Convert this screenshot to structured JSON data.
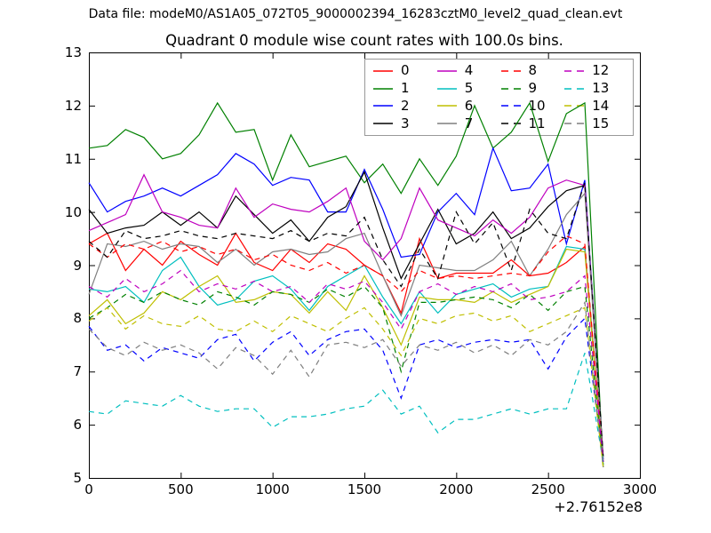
{
  "figure": {
    "suptitle": "Data file: modeM0/AS1A05_072T05_9000002394_16283cztM0_level2_quad_clean.evt",
    "title": "Quadrant 0 module wise count rates with 100.0s bins.",
    "x_offset_label": "+2.76152e8",
    "background_color": "#ffffff",
    "frame_color": "#000000",
    "legend_border_color": "#999999"
  },
  "chart_data": {
    "type": "line",
    "title": "Quadrant 0 module wise count rates with 100.0s bins.",
    "xlabel": "",
    "ylabel": "",
    "xlim": [
      0,
      3000
    ],
    "ylim": [
      5,
      13
    ],
    "x_ticks": [
      0,
      500,
      1000,
      1500,
      2000,
      2500,
      3000
    ],
    "y_ticks": [
      5,
      6,
      7,
      8,
      9,
      10,
      11,
      12,
      13
    ],
    "x_offset": "+2.76152e8",
    "grid": false,
    "legend_position": "upper right",
    "legend_columns": 4,
    "x": [
      0,
      100,
      200,
      300,
      400,
      500,
      600,
      700,
      800,
      900,
      1000,
      1100,
      1200,
      1300,
      1400,
      1500,
      1600,
      1700,
      1800,
      1900,
      2000,
      2100,
      2200,
      2300,
      2400,
      2500,
      2600,
      2700,
      2800
    ],
    "series": [
      {
        "name": "0",
        "color": "#ff0000",
        "dash": false,
        "values": [
          9.4,
          9.6,
          8.9,
          9.3,
          9.0,
          9.45,
          9.2,
          9.0,
          9.6,
          9.05,
          8.9,
          9.3,
          9.05,
          9.4,
          9.3,
          9.0,
          8.8,
          8.1,
          9.5,
          8.75,
          8.85,
          8.85,
          8.85,
          9.1,
          8.8,
          8.85,
          9.05,
          9.35,
          5.3
        ]
      },
      {
        "name": "1",
        "color": "#008000",
        "dash": false,
        "values": [
          11.2,
          11.25,
          11.55,
          11.4,
          11.0,
          11.1,
          11.45,
          12.05,
          11.5,
          11.55,
          10.6,
          11.45,
          10.85,
          10.95,
          11.05,
          10.55,
          10.9,
          10.35,
          11.0,
          10.5,
          11.05,
          12.0,
          11.2,
          11.5,
          12.05,
          10.95,
          11.85,
          12.05,
          5.2
        ]
      },
      {
        "name": "2",
        "color": "#0000ff",
        "dash": false,
        "values": [
          10.55,
          10.0,
          10.2,
          10.3,
          10.45,
          10.3,
          10.5,
          10.7,
          11.1,
          10.9,
          10.5,
          10.65,
          10.6,
          10.0,
          10.0,
          10.8,
          10.05,
          9.15,
          9.2,
          10.0,
          10.35,
          9.95,
          11.2,
          10.4,
          10.45,
          10.9,
          9.4,
          10.6,
          5.35
        ]
      },
      {
        "name": "3",
        "color": "#000000",
        "dash": false,
        "values": [
          10.05,
          9.6,
          9.7,
          9.75,
          10.0,
          9.75,
          10.0,
          9.7,
          10.3,
          9.95,
          9.6,
          9.85,
          9.45,
          9.9,
          10.1,
          10.75,
          9.7,
          8.75,
          9.4,
          10.05,
          9.4,
          9.6,
          10.0,
          9.5,
          9.7,
          10.1,
          10.4,
          10.5,
          5.4
        ]
      },
      {
        "name": "4",
        "color": "#bf00bf",
        "dash": false,
        "values": [
          9.65,
          9.8,
          9.95,
          10.7,
          10.0,
          9.9,
          9.75,
          9.7,
          10.45,
          9.9,
          10.15,
          10.05,
          10.0,
          10.2,
          10.45,
          9.45,
          9.1,
          9.5,
          10.45,
          9.85,
          9.7,
          9.55,
          9.85,
          9.6,
          9.9,
          10.45,
          10.6,
          10.5,
          5.3
        ]
      },
      {
        "name": "5",
        "color": "#00bfbf",
        "dash": false,
        "values": [
          8.55,
          8.5,
          8.6,
          8.3,
          8.9,
          9.15,
          8.6,
          8.25,
          8.35,
          8.7,
          8.8,
          8.55,
          8.15,
          8.6,
          8.8,
          9.0,
          8.4,
          7.9,
          8.5,
          8.1,
          8.45,
          8.55,
          8.65,
          8.4,
          8.55,
          8.6,
          9.35,
          9.3,
          5.25
        ]
      },
      {
        "name": "6",
        "color": "#bfbf00",
        "dash": false,
        "values": [
          8.05,
          8.35,
          7.9,
          8.1,
          8.5,
          8.35,
          8.6,
          8.8,
          8.3,
          8.35,
          8.5,
          8.45,
          8.1,
          8.5,
          8.15,
          8.8,
          8.2,
          7.5,
          8.4,
          8.35,
          8.35,
          8.3,
          8.5,
          8.3,
          8.45,
          8.6,
          9.3,
          9.25,
          5.2
        ]
      },
      {
        "name": "7",
        "color": "#7f7f7f",
        "dash": false,
        "values": [
          8.45,
          9.4,
          9.35,
          9.45,
          9.3,
          9.4,
          9.35,
          9.05,
          9.3,
          9.0,
          9.25,
          9.3,
          9.2,
          9.25,
          9.5,
          9.6,
          8.8,
          8.05,
          9.0,
          8.95,
          8.9,
          8.9,
          9.1,
          9.45,
          8.8,
          9.3,
          9.95,
          10.35,
          5.35
        ]
      },
      {
        "name": "8",
        "color": "#ff0000",
        "dash": true,
        "values": [
          9.4,
          9.15,
          9.4,
          9.3,
          9.45,
          9.25,
          9.35,
          9.2,
          9.3,
          9.1,
          9.2,
          9.0,
          8.9,
          9.05,
          8.85,
          9.0,
          8.8,
          8.5,
          8.9,
          8.75,
          8.8,
          8.75,
          8.8,
          8.85,
          8.8,
          9.25,
          9.55,
          9.4,
          5.3
        ]
      },
      {
        "name": "9",
        "color": "#008000",
        "dash": true,
        "values": [
          8.0,
          8.2,
          8.45,
          8.3,
          8.5,
          8.35,
          8.25,
          8.5,
          8.4,
          8.25,
          8.5,
          8.45,
          8.3,
          8.55,
          8.4,
          8.6,
          8.2,
          7.0,
          8.3,
          8.3,
          8.35,
          8.4,
          8.35,
          8.2,
          8.45,
          8.15,
          8.5,
          8.6,
          5.25
        ]
      },
      {
        "name": "10",
        "color": "#0000ff",
        "dash": true,
        "values": [
          7.85,
          7.4,
          7.5,
          7.2,
          7.45,
          7.35,
          7.25,
          7.6,
          7.7,
          7.2,
          7.55,
          7.75,
          7.3,
          7.6,
          7.75,
          7.8,
          7.4,
          6.5,
          7.5,
          7.6,
          7.45,
          7.55,
          7.6,
          7.55,
          7.6,
          7.05,
          7.65,
          8.0,
          5.3
        ]
      },
      {
        "name": "11",
        "color": "#000000",
        "dash": true,
        "values": [
          9.45,
          9.15,
          9.65,
          9.5,
          9.55,
          9.65,
          9.55,
          9.5,
          9.6,
          9.55,
          9.5,
          9.65,
          9.45,
          9.6,
          9.55,
          9.9,
          9.1,
          8.6,
          9.3,
          8.75,
          10.0,
          9.4,
          9.8,
          8.9,
          10.05,
          9.6,
          9.5,
          10.55,
          5.4
        ]
      },
      {
        "name": "12",
        "color": "#bf00bf",
        "dash": true,
        "values": [
          8.6,
          8.4,
          8.75,
          8.5,
          8.65,
          8.9,
          8.5,
          8.65,
          8.55,
          8.7,
          8.5,
          8.6,
          8.3,
          8.65,
          8.55,
          8.7,
          8.3,
          7.8,
          8.5,
          8.65,
          8.45,
          8.6,
          8.5,
          8.65,
          8.35,
          8.4,
          8.5,
          8.8,
          5.35
        ]
      },
      {
        "name": "13",
        "color": "#00bfbf",
        "dash": true,
        "values": [
          6.25,
          6.2,
          6.45,
          6.4,
          6.35,
          6.55,
          6.35,
          6.25,
          6.3,
          6.3,
          5.95,
          6.15,
          6.15,
          6.2,
          6.3,
          6.35,
          6.65,
          6.2,
          6.35,
          5.85,
          6.1,
          6.1,
          6.2,
          6.3,
          6.2,
          6.3,
          6.3,
          7.35,
          5.3
        ]
      },
      {
        "name": "14",
        "color": "#bfbf00",
        "dash": true,
        "values": [
          7.95,
          8.2,
          7.8,
          8.05,
          7.9,
          7.85,
          8.05,
          7.8,
          7.75,
          7.95,
          7.75,
          8.05,
          7.9,
          7.75,
          8.0,
          8.2,
          7.8,
          7.3,
          8.0,
          7.9,
          8.05,
          8.1,
          7.95,
          8.05,
          7.75,
          7.9,
          8.05,
          8.2,
          5.2
        ]
      },
      {
        "name": "15",
        "color": "#7f7f7f",
        "dash": true,
        "values": [
          7.8,
          7.45,
          7.3,
          7.55,
          7.4,
          7.5,
          7.35,
          7.05,
          7.45,
          7.3,
          6.95,
          7.4,
          6.9,
          7.5,
          7.55,
          7.45,
          7.6,
          7.1,
          7.5,
          7.4,
          7.55,
          7.35,
          7.5,
          7.3,
          7.6,
          7.5,
          7.75,
          8.3,
          5.2
        ]
      }
    ]
  }
}
